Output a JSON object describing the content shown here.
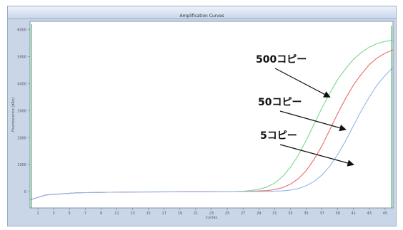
{
  "window": {
    "title": "Amplification Curves"
  },
  "chart_data": {
    "type": "line",
    "title": "Amplification Curves",
    "xlabel": "Cycles",
    "ylabel": "Fluorescence (dRn)",
    "xlim": [
      0,
      46
    ],
    "ylim": [
      -600,
      6300
    ],
    "grid": false,
    "legend": "none",
    "x_ticks": [
      1,
      3,
      5,
      7,
      9,
      11,
      13,
      15,
      17,
      19,
      21,
      23,
      25,
      27,
      29,
      31,
      33,
      35,
      37,
      39,
      41,
      43,
      45
    ],
    "y_ticks": [
      0,
      1000,
      2000,
      3000,
      4000,
      5000,
      6000
    ],
    "series": [
      {
        "name": "",
        "color": "#7dd68f",
        "values": [
          [
            0,
            -300
          ],
          [
            2,
            -120
          ],
          [
            6,
            -40
          ],
          [
            10,
            -20
          ],
          [
            14,
            -10
          ],
          [
            18,
            -5
          ],
          [
            22,
            0
          ],
          [
            25,
            5
          ],
          [
            27,
            20
          ],
          [
            28,
            45
          ],
          [
            29,
            90
          ],
          [
            30,
            170
          ],
          [
            31,
            320
          ],
          [
            32,
            560
          ],
          [
            33,
            900
          ],
          [
            34,
            1350
          ],
          [
            35,
            1900
          ],
          [
            36,
            2500
          ],
          [
            37,
            3100
          ],
          [
            38,
            3650
          ],
          [
            39,
            4150
          ],
          [
            40,
            4550
          ],
          [
            41,
            4900
          ],
          [
            42,
            5150
          ],
          [
            43,
            5350
          ],
          [
            44,
            5480
          ],
          [
            45,
            5560
          ],
          [
            46,
            5600
          ]
        ]
      },
      {
        "name": "",
        "color": "#ee6a6a",
        "values": [
          [
            0,
            -300
          ],
          [
            2,
            -120
          ],
          [
            6,
            -40
          ],
          [
            10,
            -20
          ],
          [
            14,
            -10
          ],
          [
            18,
            -5
          ],
          [
            22,
            0
          ],
          [
            26,
            5
          ],
          [
            28,
            15
          ],
          [
            30,
            40
          ],
          [
            31,
            80
          ],
          [
            32,
            150
          ],
          [
            33,
            280
          ],
          [
            34,
            480
          ],
          [
            35,
            780
          ],
          [
            36,
            1200
          ],
          [
            37,
            1700
          ],
          [
            38,
            2300
          ],
          [
            39,
            2900
          ],
          [
            40,
            3450
          ],
          [
            41,
            3950
          ],
          [
            42,
            4350
          ],
          [
            43,
            4700
          ],
          [
            44,
            4950
          ],
          [
            45,
            5120
          ],
          [
            46,
            5250
          ]
        ]
      },
      {
        "name": "",
        "color": "#93b6ec",
        "values": [
          [
            0,
            -300
          ],
          [
            2,
            -120
          ],
          [
            6,
            -40
          ],
          [
            10,
            -20
          ],
          [
            14,
            -10
          ],
          [
            18,
            -5
          ],
          [
            22,
            0
          ],
          [
            26,
            5
          ],
          [
            30,
            10
          ],
          [
            32,
            30
          ],
          [
            33,
            60
          ],
          [
            34,
            120
          ],
          [
            35,
            220
          ],
          [
            36,
            380
          ],
          [
            37,
            620
          ],
          [
            38,
            950
          ],
          [
            39,
            1380
          ],
          [
            40,
            1880
          ],
          [
            41,
            2450
          ],
          [
            42,
            3000
          ],
          [
            43,
            3500
          ],
          [
            44,
            3950
          ],
          [
            45,
            4300
          ],
          [
            46,
            4600
          ]
        ]
      }
    ],
    "annotations": [
      {
        "text": "500コピー",
        "target": [
          38,
          3500
        ]
      },
      {
        "text": "50コピー",
        "target": [
          40,
          2300
        ]
      },
      {
        "text": "5コピー",
        "target": [
          41,
          1000
        ]
      }
    ]
  }
}
